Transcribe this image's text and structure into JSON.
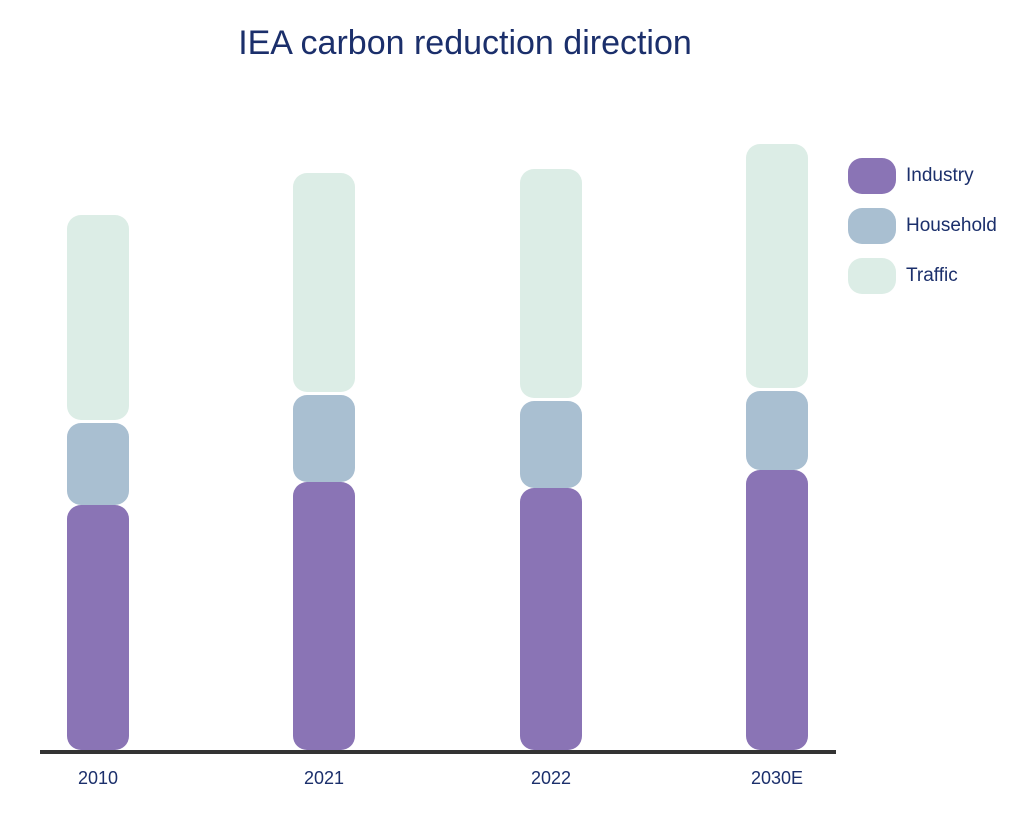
{
  "chart_data": {
    "type": "bar",
    "stacked": true,
    "title": "IEA carbon reduction direction",
    "categories": [
      "2010",
      "2021",
      "2022",
      "2030E"
    ],
    "series": [
      {
        "name": "Industry",
        "color": "#8a74b5",
        "values": [
          245,
          268,
          262,
          280
        ]
      },
      {
        "name": "Household",
        "color": "#a9bfd1",
        "values": [
          85,
          90,
          90,
          82
        ]
      },
      {
        "name": "Traffic",
        "color": "#dcede6",
        "values": [
          208,
          222,
          232,
          247
        ]
      }
    ],
    "ylim": [
      0,
      620
    ],
    "legend_position": "right",
    "grid": false
  }
}
